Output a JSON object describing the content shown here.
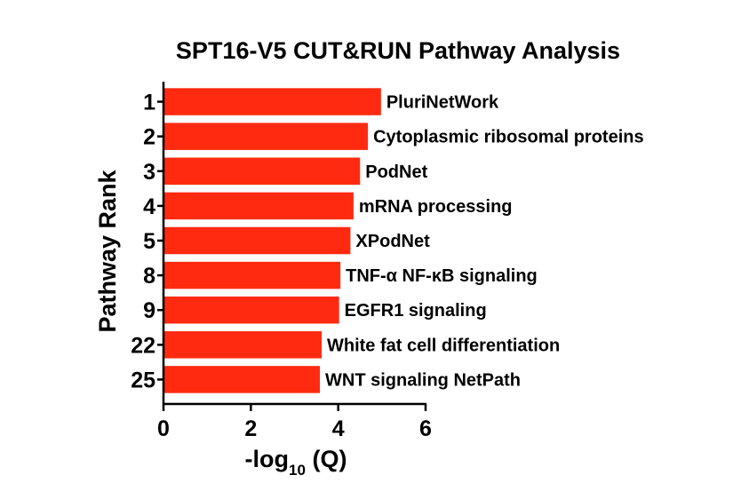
{
  "chart_data": {
    "type": "bar",
    "orientation": "horizontal",
    "title": "SPT16-V5 CUT&RUN Pathway Analysis",
    "xlabel_prefix": "-log",
    "xlabel_subscript": "10",
    "xlabel_suffix": " (Q)",
    "ylabel": "Pathway Rank",
    "xlim": [
      0,
      6
    ],
    "xticks": [
      "0",
      "2",
      "4",
      "6"
    ],
    "categories": [
      "1",
      "2",
      "3",
      "4",
      "5",
      "8",
      "9",
      "22",
      "25"
    ],
    "labels": [
      "PluriNetWork",
      "Cytoplasmic ribosomal proteins",
      "PodNet",
      "mRNA processing",
      "XPodNet",
      "TNF-α NF-κB signaling",
      "EGFR1 signaling",
      "White fat cell differentiation",
      "WNT signaling NetPath"
    ],
    "values": [
      4.98,
      4.68,
      4.5,
      4.35,
      4.28,
      4.05,
      4.02,
      3.62,
      3.58
    ],
    "bar_color": "#ff2a0f",
    "grid": false,
    "legend": "none"
  }
}
